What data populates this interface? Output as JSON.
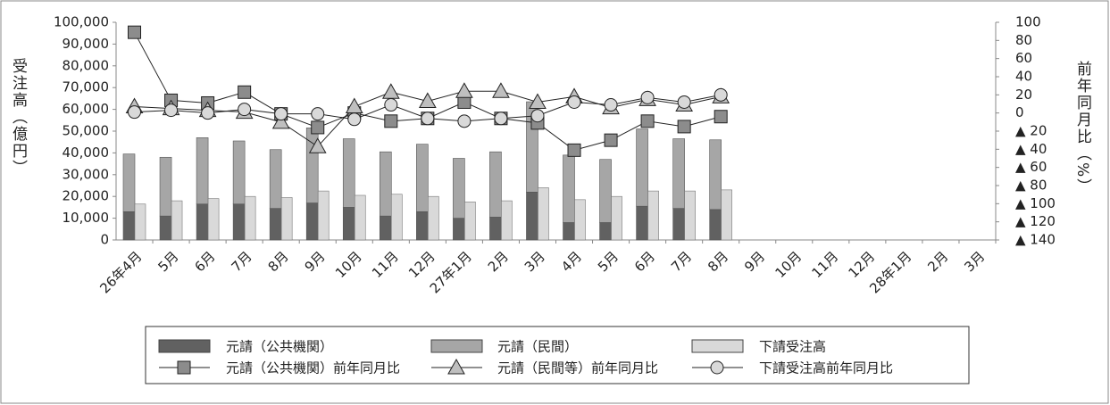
{
  "chart_data": {
    "type": "bar",
    "y_label": "受注高（億円）",
    "y2_label": "前年同月比（%）",
    "categories": [
      "26年4月",
      "5月",
      "6月",
      "7月",
      "8月",
      "9月",
      "10月",
      "11月",
      "12月",
      "27年1月",
      "2月",
      "3月",
      "4月",
      "5月",
      "6月",
      "7月",
      "8月",
      "9月",
      "10月",
      "11月",
      "12月",
      "28年1月",
      "2月",
      "3月"
    ],
    "ylim": [
      0,
      100000
    ],
    "yticks": [
      0,
      {
        "value": 10000,
        "label": "10,000"
      },
      {
        "value": 20000,
        "label": "20,000"
      },
      {
        "value": 30000,
        "label": "30,000"
      },
      {
        "value": 40000,
        "label": "40,000"
      },
      {
        "value": 50000,
        "label": "50,000"
      },
      {
        "value": 60000,
        "label": "60,000"
      },
      {
        "value": 70000,
        "label": "70,000"
      },
      {
        "value": 80000,
        "label": "80,000"
      },
      {
        "value": 90000,
        "label": "90,000"
      },
      {
        "value": 100000,
        "label": "100,000"
      }
    ],
    "y2lim": [
      -140,
      100
    ],
    "y2ticks": [
      100,
      80,
      60,
      40,
      20,
      0,
      {
        "value": -20,
        "label": "▲ 20"
      },
      {
        "value": -40,
        "label": "▲ 40"
      },
      {
        "value": -60,
        "label": "▲ 60"
      },
      {
        "value": -80,
        "label": "▲ 80"
      },
      {
        "value": -100,
        "label": "▲ 100"
      },
      {
        "value": -120,
        "label": "▲ 120"
      },
      {
        "value": -140,
        "label": "▲ 140"
      }
    ],
    "series": [
      {
        "name": "元請（公共機関）",
        "type": "bar",
        "stacked": true,
        "color": "#616161",
        "values": [
          13000,
          11000,
          16500,
          16500,
          14500,
          17000,
          15000,
          11000,
          13000,
          10000,
          10500,
          22000,
          8000,
          8000,
          15500,
          14500,
          14000,
          null,
          null,
          null,
          null,
          null,
          null,
          null
        ]
      },
      {
        "name": "元請（民間）",
        "type": "bar",
        "stacked": true,
        "color": "#a6a6a6",
        "values": [
          26500,
          27000,
          30500,
          29000,
          27000,
          34500,
          31500,
          29500,
          31000,
          27500,
          30000,
          41500,
          31000,
          29000,
          35500,
          32000,
          32000,
          null,
          null,
          null,
          null,
          null,
          null,
          null
        ]
      },
      {
        "name": "下請受注高",
        "type": "bar",
        "stacked": false,
        "color": "#d9d9d9",
        "values": [
          16500,
          18000,
          19000,
          20000,
          19500,
          22500,
          20500,
          21000,
          20000,
          17500,
          18000,
          24000,
          18500,
          20000,
          22500,
          22500,
          23000,
          null,
          null,
          null,
          null,
          null,
          null,
          null
        ]
      },
      {
        "name": "元請（公共機関）前年同月比",
        "type": "line",
        "axis": "y2",
        "marker": "square",
        "color": "#8c8c8c",
        "values": [
          89,
          14,
          11,
          23,
          -1,
          -16,
          0,
          -9,
          -6,
          12,
          -6,
          -11,
          -41,
          -30,
          -9,
          -15,
          -4,
          null,
          null,
          null,
          null,
          null,
          null,
          null
        ]
      },
      {
        "name": "元請（民間等）前年同月比",
        "type": "line",
        "axis": "y2",
        "marker": "triangle",
        "color": "#bfbfbf",
        "values": [
          7,
          5,
          3,
          1,
          -10,
          -37,
          7,
          23,
          13,
          24,
          24,
          12,
          18,
          6,
          15,
          9,
          18,
          null,
          null,
          null,
          null,
          null,
          null,
          null
        ]
      },
      {
        "name": "下請受注高前年同月比",
        "type": "line",
        "axis": "y2",
        "marker": "circle",
        "color": "#d9d9d9",
        "values": [
          1,
          3,
          0,
          4,
          -1,
          -1,
          -7,
          9,
          -6,
          -9,
          -6,
          -3,
          12,
          9,
          17,
          12,
          20,
          null,
          null,
          null,
          null,
          null,
          null,
          null
        ]
      }
    ]
  }
}
